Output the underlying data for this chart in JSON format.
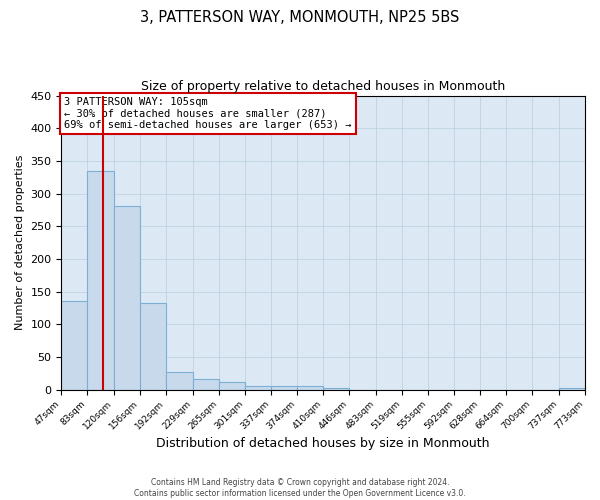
{
  "title": "3, PATTERSON WAY, MONMOUTH, NP25 5BS",
  "subtitle": "Size of property relative to detached houses in Monmouth",
  "xlabel": "Distribution of detached houses by size in Monmouth",
  "ylabel": "Number of detached properties",
  "bar_color": "#c9d9ec",
  "bar_edge_color": "#7bafd4",
  "background_color": "#ffffff",
  "ax_bg_color": "#dce9f5",
  "grid_color": "#b8cfe0",
  "vline_x": 105,
  "vline_color": "#cc0000",
  "bin_edges": [
    47,
    83,
    120,
    156,
    192,
    229,
    265,
    301,
    337,
    374,
    410,
    446,
    483,
    519,
    555,
    592,
    628,
    664,
    700,
    737,
    773
  ],
  "bin_labels": [
    "47sqm",
    "83sqm",
    "120sqm",
    "156sqm",
    "192sqm",
    "229sqm",
    "265sqm",
    "301sqm",
    "337sqm",
    "374sqm",
    "410sqm",
    "446sqm",
    "483sqm",
    "519sqm",
    "555sqm",
    "592sqm",
    "628sqm",
    "664sqm",
    "700sqm",
    "737sqm",
    "773sqm"
  ],
  "bar_heights": [
    135,
    335,
    281,
    133,
    27,
    16,
    11,
    6,
    5,
    5,
    3,
    0,
    0,
    0,
    0,
    0,
    0,
    0,
    0,
    3
  ],
  "ylim": [
    0,
    450
  ],
  "yticks": [
    0,
    50,
    100,
    150,
    200,
    250,
    300,
    350,
    400,
    450
  ],
  "annotation_title": "3 PATTERSON WAY: 105sqm",
  "annotation_line1": "← 30% of detached houses are smaller (287)",
  "annotation_line2": "69% of semi-detached houses are larger (653) →",
  "annotation_box_color": "#ffffff",
  "annotation_box_edge_color": "#cc0000",
  "footer_line1": "Contains HM Land Registry data © Crown copyright and database right 2024.",
  "footer_line2": "Contains public sector information licensed under the Open Government Licence v3.0."
}
